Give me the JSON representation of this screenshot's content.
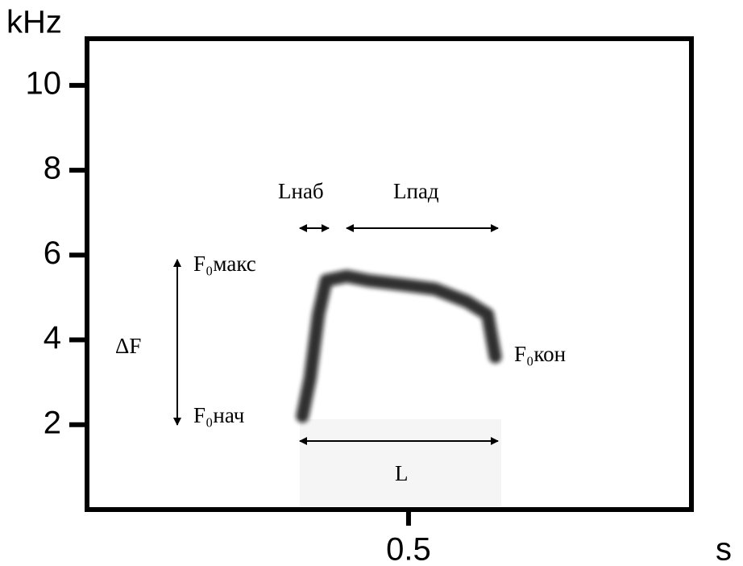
{
  "chart_data": {
    "type": "line",
    "ylabel": "kHz",
    "xlabel": "s",
    "x": [
      0.335,
      0.347,
      0.36,
      0.372,
      0.404,
      0.437,
      0.491,
      0.541,
      0.591,
      0.623,
      0.635
    ],
    "values": [
      2.2,
      3.1,
      4.6,
      5.4,
      5.5,
      5.4,
      5.3,
      5.2,
      4.9,
      4.6,
      3.6
    ],
    "color": "#111111",
    "xlim": [
      0,
      0.94
    ],
    "xticks": [
      0.5
    ],
    "ylim": [
      0,
      11.1
    ],
    "yticks": [
      2,
      4,
      6,
      8,
      10
    ],
    "annotations": {
      "l_rise": "Lнаб",
      "l_fall": "Lпад",
      "l_total": "L",
      "delta_f": "ΔF",
      "f0_max": "F₀макс",
      "f0_start": "F₀нач",
      "f0_end": "F₀кон"
    }
  }
}
